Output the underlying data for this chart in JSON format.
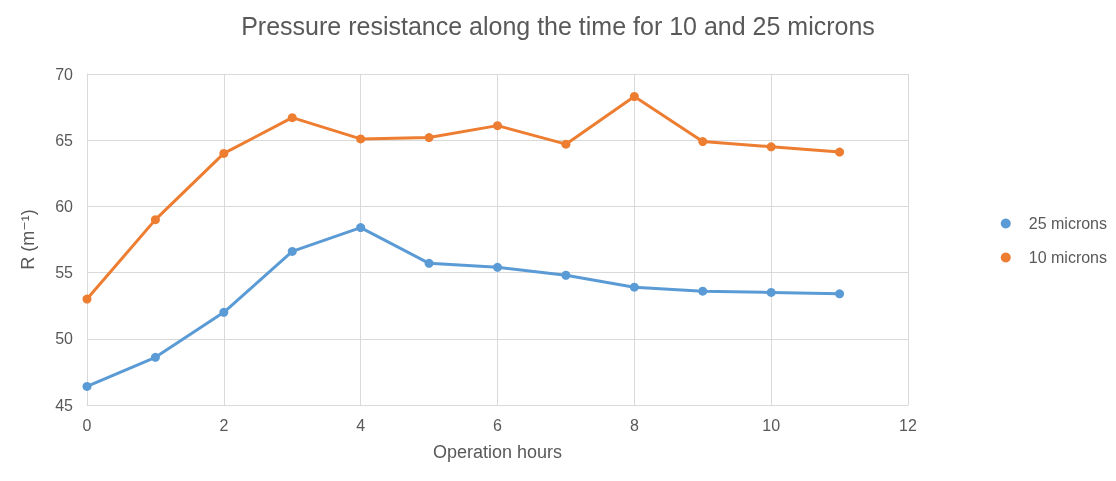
{
  "chart_data": {
    "type": "line",
    "title": "Pressure resistance along the time for 10 and 25 microns",
    "xlabel": "Operation hours",
    "ylabel": "R (m⁻¹)",
    "x": [
      0,
      1,
      2,
      3,
      4,
      5,
      6,
      7,
      8,
      9,
      10,
      11
    ],
    "series": [
      {
        "name": "25 microns",
        "color": "#5b9bd5",
        "values": [
          46.4,
          48.6,
          52.0,
          56.6,
          58.4,
          55.7,
          55.4,
          54.8,
          53.9,
          53.6,
          53.5,
          53.4
        ]
      },
      {
        "name": "10 microns",
        "color": "#ed7d31",
        "values": [
          53.0,
          59.0,
          64.0,
          66.7,
          65.1,
          65.2,
          66.1,
          64.7,
          68.3,
          64.9,
          64.5,
          64.1
        ]
      }
    ],
    "xlim": [
      0,
      12
    ],
    "xticks": [
      0,
      2,
      4,
      6,
      8,
      10,
      12
    ],
    "ylim": [
      45,
      70
    ],
    "yticks": [
      45,
      50,
      55,
      60,
      65,
      70
    ],
    "grid": true,
    "legend": "right",
    "marker": "circle",
    "line_style": "solid"
  }
}
